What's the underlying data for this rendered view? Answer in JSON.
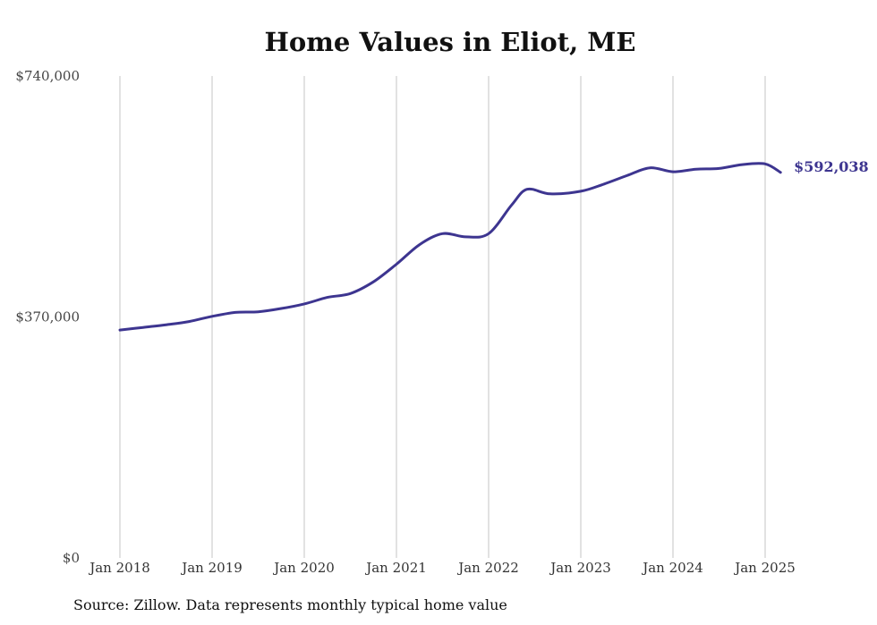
{
  "chart_data": {
    "type": "line",
    "title": "Home Values in Eliot, ME",
    "source_note": "Source: Zillow. Data represents monthly typical home value",
    "ylim": [
      0,
      740000
    ],
    "y_ticks": [
      {
        "value": 0,
        "label": "$0"
      },
      {
        "value": 370000,
        "label": "$370,000"
      },
      {
        "value": 740000,
        "label": "$740,000"
      }
    ],
    "x_ticks": [
      {
        "value": "2018-01",
        "label": "Jan 2018"
      },
      {
        "value": "2019-01",
        "label": "Jan 2019"
      },
      {
        "value": "2020-01",
        "label": "Jan 2020"
      },
      {
        "value": "2021-01",
        "label": "Jan 2021"
      },
      {
        "value": "2022-01",
        "label": "Jan 2022"
      },
      {
        "value": "2023-01",
        "label": "Jan 2023"
      },
      {
        "value": "2024-01",
        "label": "Jan 2024"
      },
      {
        "value": "2025-01",
        "label": "Jan 2025"
      }
    ],
    "grid": "vertical",
    "series": [
      {
        "color": "#3d3590",
        "end_label": "$592,038",
        "x": [
          "2018-01",
          "2018-04",
          "2018-07",
          "2018-10",
          "2019-01",
          "2019-04",
          "2019-07",
          "2019-10",
          "2020-01",
          "2020-04",
          "2020-07",
          "2020-10",
          "2021-01",
          "2021-04",
          "2021-07",
          "2021-10",
          "2022-01",
          "2022-04",
          "2022-06",
          "2022-09",
          "2023-01",
          "2023-04",
          "2023-07",
          "2023-10",
          "2024-01",
          "2024-04",
          "2024-07",
          "2024-10",
          "2025-01",
          "2025-03"
        ],
        "values": [
          350000,
          354000,
          358000,
          363000,
          371000,
          377000,
          378000,
          383000,
          390000,
          400000,
          406000,
          424000,
          451000,
          481000,
          498000,
          493000,
          498000,
          542000,
          566000,
          559000,
          563000,
          574000,
          587000,
          599000,
          593000,
          597000,
          598000,
          604000,
          605000,
          592038
        ]
      }
    ]
  }
}
